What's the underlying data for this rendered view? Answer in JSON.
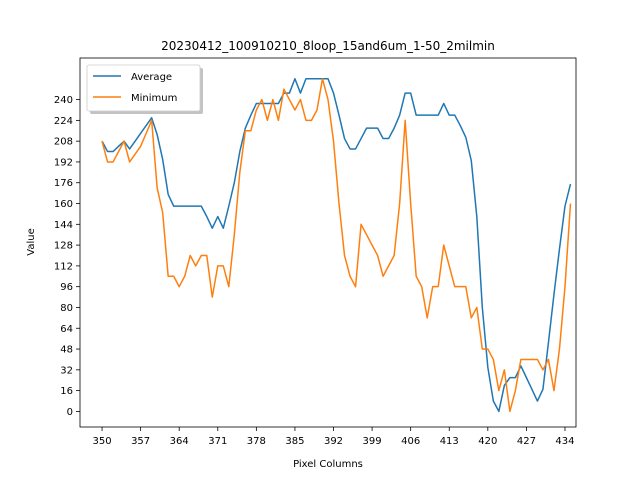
{
  "chart_data": {
    "type": "line",
    "title": "20230412_100910210_8loop_15and6um_1-50_2milmin",
    "xlabel": "Pixel Columns",
    "ylabel": "Value",
    "xlim": [
      346,
      436
    ],
    "ylim": [
      -12,
      272
    ],
    "xticks": [
      350,
      357,
      364,
      371,
      378,
      385,
      392,
      399,
      406,
      413,
      420,
      427,
      434
    ],
    "yticks": [
      0,
      16,
      32,
      48,
      64,
      80,
      96,
      112,
      128,
      144,
      160,
      176,
      192,
      208,
      224,
      240
    ],
    "legend": {
      "position": "top-left"
    },
    "colors": {
      "average": "#1f77b4",
      "minimum": "#ff7f0e"
    },
    "series": [
      {
        "name": "Average",
        "x": [
          350,
          351,
          352,
          353,
          354,
          355,
          356,
          357,
          358,
          359,
          360,
          361,
          362,
          363,
          364,
          365,
          366,
          367,
          368,
          369,
          370,
          371,
          372,
          373,
          374,
          375,
          376,
          377,
          378,
          379,
          380,
          381,
          382,
          383,
          384,
          385,
          386,
          387,
          388,
          389,
          390,
          391,
          392,
          393,
          394,
          395,
          396,
          397,
          398,
          399,
          400,
          401,
          402,
          403,
          404,
          405,
          406,
          407,
          408,
          409,
          410,
          411,
          412,
          413,
          414,
          415,
          416,
          417,
          418,
          419,
          420,
          421,
          422,
          423,
          424,
          425,
          426,
          427,
          428,
          429,
          430,
          431,
          432,
          433,
          434,
          435
        ],
        "values": [
          208,
          200,
          200,
          204,
          208,
          202,
          208,
          214,
          220,
          226,
          213,
          194,
          167,
          158,
          158,
          158,
          158,
          158,
          158,
          150,
          141,
          150,
          141,
          158,
          176,
          200,
          218,
          228,
          237,
          237,
          237,
          237,
          237,
          245,
          245,
          256,
          245,
          256,
          256,
          256,
          256,
          256,
          245,
          228,
          210,
          202,
          202,
          210,
          218,
          218,
          218,
          210,
          210,
          218,
          228,
          245,
          245,
          228,
          228,
          228,
          228,
          228,
          237,
          228,
          228,
          220,
          211,
          193,
          150,
          80,
          34,
          8,
          0,
          20,
          26,
          26,
          35,
          26,
          17,
          8,
          17,
          53,
          90,
          125,
          158,
          175
        ]
      },
      {
        "name": "Minimum",
        "x": [
          350,
          351,
          352,
          354,
          355,
          357,
          358,
          359,
          360,
          361,
          362,
          363,
          364,
          365,
          366,
          367,
          368,
          369,
          370,
          371,
          372,
          373,
          374,
          375,
          376,
          377,
          378,
          379,
          380,
          381,
          382,
          383,
          384,
          385,
          386,
          387,
          388,
          389,
          390,
          391,
          392,
          393,
          394,
          395,
          396,
          397,
          398,
          399,
          400,
          401,
          402,
          403,
          404,
          405,
          406,
          407,
          408,
          409,
          410,
          411,
          412,
          413,
          414,
          415,
          416,
          417,
          418,
          419,
          420,
          421,
          422,
          423,
          424,
          425,
          426,
          427,
          428,
          429,
          430,
          431,
          432,
          433,
          434,
          435
        ],
        "values": [
          208,
          192,
          192,
          208,
          192,
          204,
          214,
          224,
          172,
          153,
          104,
          104,
          96,
          104,
          120,
          112,
          120,
          120,
          88,
          112,
          112,
          96,
          136,
          184,
          216,
          216,
          232,
          240,
          224,
          240,
          224,
          248,
          240,
          232,
          240,
          224,
          224,
          232,
          256,
          240,
          208,
          160,
          120,
          104,
          96,
          144,
          136,
          128,
          120,
          104,
          112,
          120,
          160,
          224,
          160,
          104,
          96,
          72,
          96,
          96,
          128,
          112,
          96,
          96,
          96,
          72,
          80,
          48,
          48,
          40,
          16,
          32,
          0,
          16,
          40,
          40,
          40,
          40,
          32,
          40,
          16,
          48,
          96,
          160
        ]
      }
    ]
  }
}
